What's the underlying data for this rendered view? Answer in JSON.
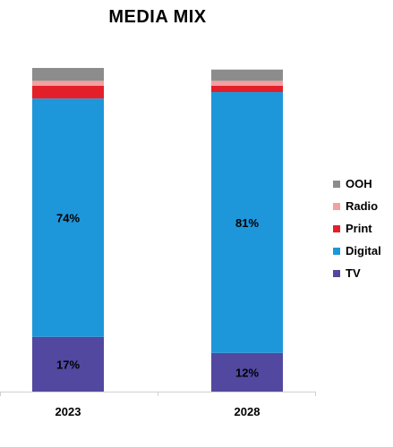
{
  "chart_data": {
    "type": "bar",
    "stacked": true,
    "percent": true,
    "title": "MEDIA MIX",
    "categories": [
      "2023",
      "2028"
    ],
    "series": [
      {
        "name": "TV",
        "color": "#5248A0",
        "values": [
          17,
          12
        ],
        "labels": [
          "17%",
          "12%"
        ]
      },
      {
        "name": "Digital",
        "color": "#1E96DA",
        "values": [
          74,
          81
        ],
        "labels": [
          "74%",
          "81%"
        ]
      },
      {
        "name": "Print",
        "color": "#E3202A",
        "values": [
          4,
          2
        ],
        "labels": [
          "",
          ""
        ]
      },
      {
        "name": "Radio",
        "color": "#F2A0A0",
        "values": [
          1.5,
          1.5
        ],
        "labels": [
          "",
          ""
        ]
      },
      {
        "name": "OOH",
        "color": "#8C8C8C",
        "values": [
          4,
          3.5
        ],
        "labels": [
          "",
          ""
        ]
      }
    ],
    "legend_order": [
      "OOH",
      "Radio",
      "Print",
      "Digital",
      "TV"
    ],
    "legend_position": "right",
    "ylim": [
      0,
      100.5
    ],
    "grid": false
  }
}
